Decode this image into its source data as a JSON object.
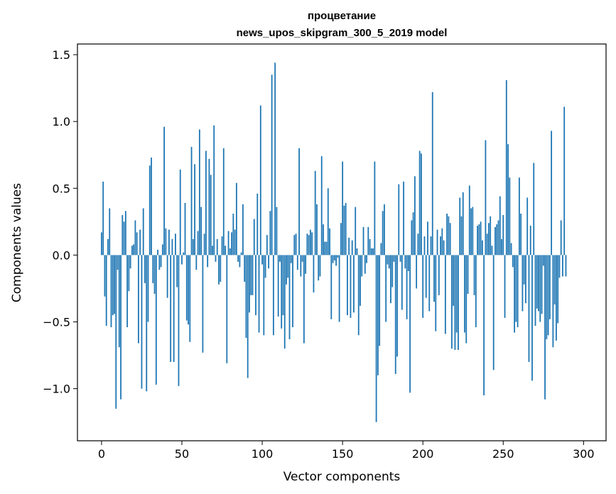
{
  "chart_data": {
    "type": "bar",
    "title": "процветание",
    "subtitle": "news_upos_skipgram_300_5_2019 model",
    "xlabel": "Vector components",
    "ylabel": "Components values",
    "xlim": [
      -15,
      314
    ],
    "ylim": [
      -1.39,
      1.58
    ],
    "xticks": [
      0,
      50,
      100,
      150,
      200,
      250,
      300
    ],
    "yticks": [
      -1.0,
      -0.5,
      0.0,
      0.5,
      1.0,
      1.5
    ],
    "ytick_labels": [
      "−1.0",
      "−0.5",
      "0.0",
      "0.5",
      "1.0",
      "1.5"
    ],
    "grid": false,
    "bar_color": "#1f77b4",
    "values": [
      0.17,
      0.55,
      -0.31,
      -0.53,
      0.12,
      0.35,
      -0.54,
      -0.45,
      -0.44,
      -1.15,
      -0.11,
      -0.69,
      -1.08,
      0.3,
      0.25,
      0.33,
      -0.54,
      -0.27,
      -0.1,
      0.07,
      0.08,
      0.26,
      0.17,
      -0.66,
      0.19,
      -1.0,
      0.35,
      -0.21,
      -1.02,
      -0.5,
      0.67,
      0.73,
      -0.21,
      -0.29,
      -0.97,
      0.04,
      -0.11,
      -0.09,
      0.08,
      0.96,
      0.2,
      -0.32,
      0.19,
      -0.8,
      0.12,
      -0.8,
      0.16,
      -0.24,
      -0.98,
      0.64,
      -0.07,
      0.02,
      0.39,
      -0.49,
      -0.52,
      -0.65,
      0.81,
      0.12,
      0.68,
      -0.11,
      0.18,
      0.94,
      0.36,
      -0.73,
      0.16,
      0.78,
      -0.09,
      0.72,
      0.6,
      0.07,
      0.97,
      -0.05,
      0.12,
      -0.22,
      -0.2,
      0.14,
      0.8,
      0.07,
      -0.81,
      0.18,
      0.05,
      0.17,
      0.31,
      0.19,
      0.54,
      -0.05,
      -0.09,
      0.02,
      0.38,
      -0.2,
      -0.62,
      -0.92,
      -0.43,
      -0.3,
      -0.3,
      0.27,
      -0.45,
      0.46,
      -0.58,
      1.12,
      -0.07,
      -0.6,
      -0.17,
      0.15,
      -0.1,
      0.33,
      1.35,
      -0.6,
      1.44,
      0.36,
      -0.46,
      -0.05,
      -0.55,
      -0.45,
      -0.7,
      -0.22,
      -0.17,
      -0.63,
      -0.06,
      -0.54,
      0.15,
      0.16,
      -0.11,
      0.8,
      -0.16,
      -0.05,
      -0.66,
      -0.14,
      0.16,
      0.15,
      0.19,
      0.17,
      -0.28,
      0.63,
      0.38,
      -0.19,
      -0.16,
      0.74,
      0.23,
      0.1,
      0.1,
      0.5,
      0.2,
      -0.48,
      -0.06,
      -0.04,
      -0.08,
      -0.02,
      -0.5,
      0.24,
      0.7,
      0.37,
      0.39,
      -0.45,
      0.13,
      -0.47,
      0.11,
      -0.43,
      0.36,
      0.05,
      -0.6,
      -0.38,
      -0.16,
      0.21,
      -0.14,
      -0.06,
      0.21,
      0.12,
      0.05,
      0.05,
      0.7,
      -1.25,
      -0.9,
      -0.68,
      0.09,
      0.33,
      0.38,
      -0.5,
      -0.07,
      -0.1,
      -0.36,
      -0.24,
      -0.05,
      -0.89,
      -0.76,
      0.53,
      -0.05,
      -0.41,
      0.55,
      -0.1,
      -0.48,
      -0.12,
      -1.03,
      0.26,
      0.32,
      0.59,
      -0.25,
      0.16,
      0.78,
      0.76,
      -0.47,
      0.14,
      -0.32,
      0.25,
      -0.42,
      0.14,
      1.22,
      -0.35,
      -0.57,
      0.19,
      -0.3,
      0.14,
      0.2,
      0.11,
      -0.59,
      0.31,
      0.29,
      0.24,
      -0.7,
      -0.38,
      -0.71,
      -0.58,
      -0.71,
      0.43,
      0.29,
      0.47,
      -0.58,
      -0.66,
      -0.29,
      0.52,
      0.35,
      0.36,
      -0.3,
      -0.54,
      0.22,
      0.23,
      0.25,
      0.11,
      -1.05,
      0.86,
      0.16,
      0.24,
      0.29,
      0.07,
      -0.86,
      0.21,
      0.23,
      0.26,
      0.44,
      0.12,
      0.3,
      -0.47,
      1.31,
      0.83,
      0.58,
      0.09,
      -0.09,
      -0.58,
      -0.5,
      -0.54,
      0.58,
      0.31,
      -0.42,
      -0.22,
      -0.36,
      0.43,
      -0.8,
      0.22,
      -0.94,
      0.69,
      -0.53,
      -0.4,
      -0.42,
      -0.5,
      -0.44,
      -0.08,
      -1.08,
      -0.63,
      -0.6,
      -0.48,
      0.93,
      -0.69,
      -0.37,
      -0.64,
      -0.51,
      -0.17,
      0.26,
      -0.16,
      1.11,
      -0.16
    ]
  }
}
